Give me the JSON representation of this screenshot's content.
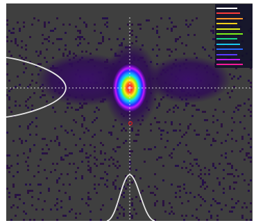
{
  "view": {
    "name": "beam-profile",
    "colors": {
      "background": "#ffffff",
      "floor": "#3f3f3f",
      "noise": "#2a1240",
      "halo": "#2f0d55",
      "axes": "#dddddd",
      "profile": "#e8e8e8",
      "marker": "#e01818"
    }
  },
  "colormap": [
    "#2a0a4a",
    "#3a0b86",
    "#5a12d0",
    "#8a18ff",
    "#cf19ff",
    "#1f2aff",
    "#1aa4ff",
    "#10e6e8",
    "#17e84a",
    "#9ef21a",
    "#fff21a",
    "#ffb21a",
    "#ff6a1a",
    "#ff2a2a",
    "#ffffff"
  ],
  "legend": {
    "entries": [
      {
        "label": "",
        "color": "#ffffff"
      },
      {
        "label": "",
        "color": "#ff3c3c"
      },
      {
        "label": "",
        "color": "#ff9a2a"
      },
      {
        "label": "",
        "color": "#ffd21a"
      },
      {
        "label": "",
        "color": "#e6f21a"
      },
      {
        "label": "",
        "color": "#7ef21a"
      },
      {
        "label": "",
        "color": "#19d98a"
      },
      {
        "label": "",
        "color": "#19c8f0"
      },
      {
        "label": "",
        "color": "#2a6aff"
      },
      {
        "label": "",
        "color": "#5a3aff"
      },
      {
        "label": "",
        "color": "#c21aff"
      },
      {
        "label": "",
        "color": "#ff1a9a"
      }
    ]
  }
}
